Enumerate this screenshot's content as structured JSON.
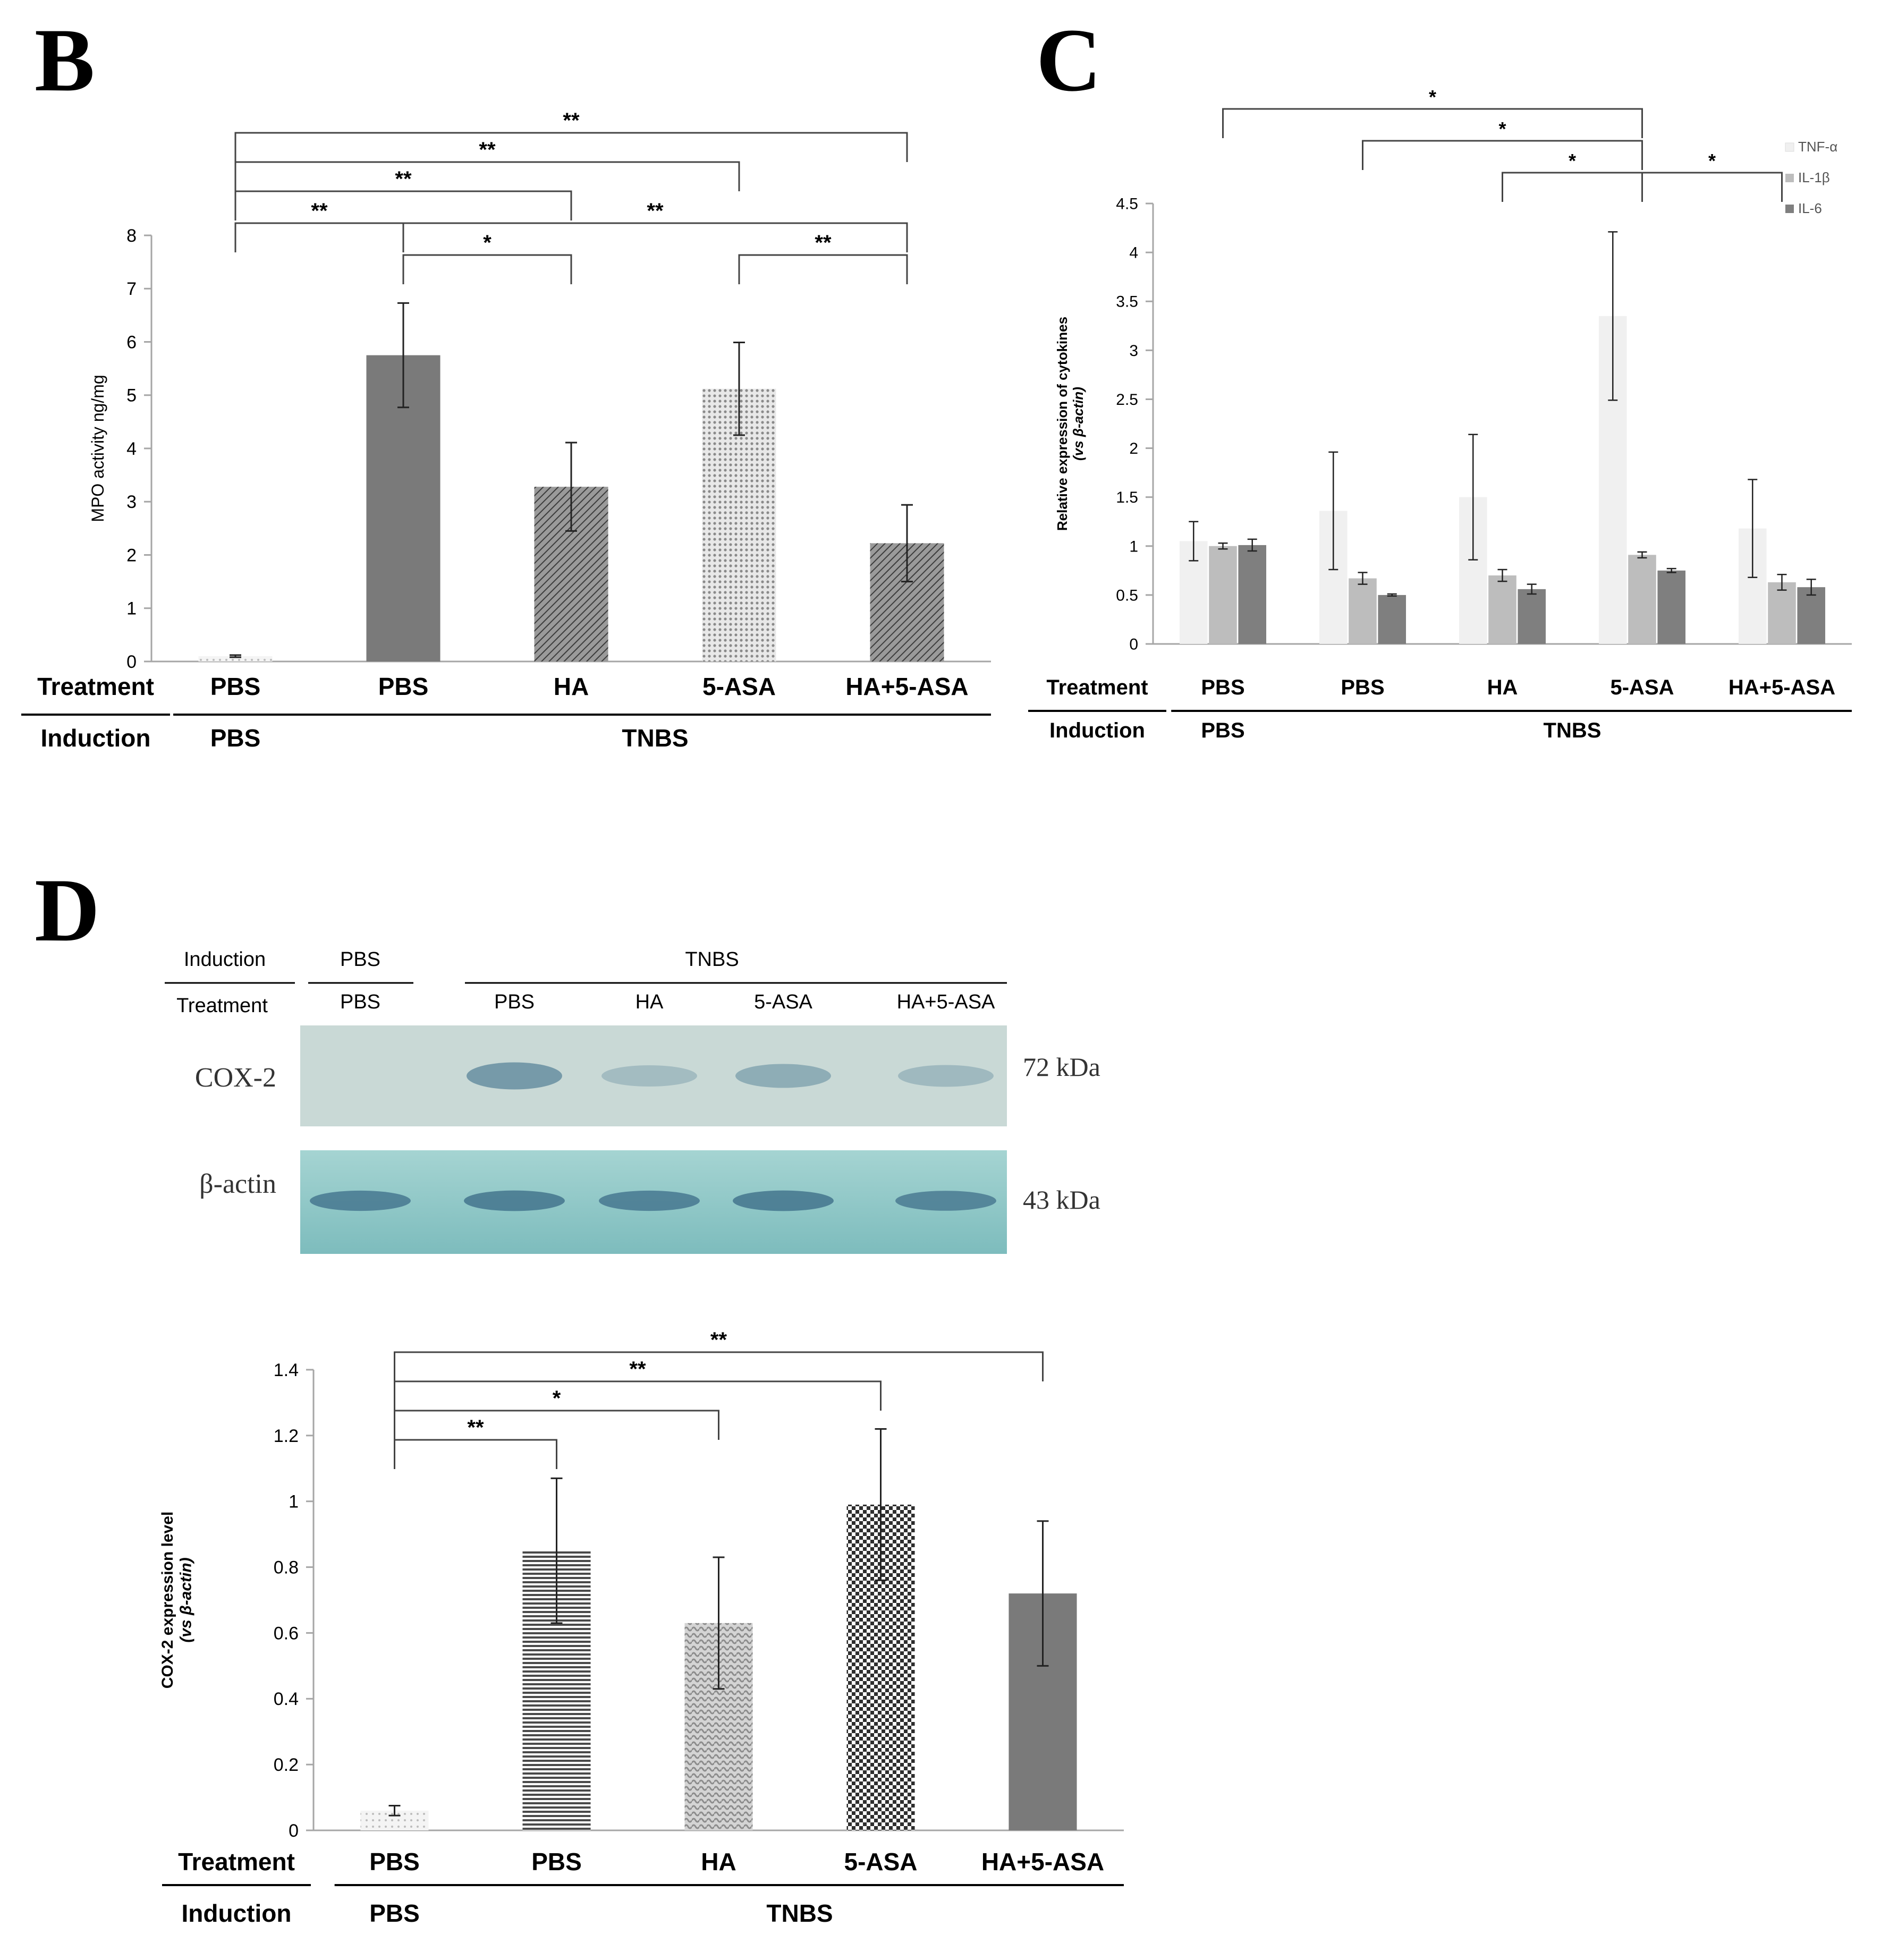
{
  "panels": {
    "B": "B",
    "C": "C",
    "D": "D"
  },
  "colors": {
    "axis": "#a6a6a6",
    "text": "#000000",
    "bar_dark": "#7a7a7a",
    "bar_light": "#cfcfcf",
    "tnf": "#f0f0f0",
    "il1b": "#bdbdbd",
    "il6": "#7f7f7f",
    "blot_cox": "#c9d9d6",
    "blot_actin": "#8ec8c8",
    "band": "#3f6f8a"
  },
  "chart_data": [
    {
      "id": "B",
      "type": "bar",
      "title": "",
      "ylabel": "MPO activity ng/mg",
      "ylim": [
        0,
        8
      ],
      "yticks": [
        "0",
        "1",
        "2",
        "3",
        "4",
        "5",
        "6",
        "7",
        "8"
      ],
      "categories": [
        "PBS",
        "PBS",
        "HA",
        "5-ASA",
        "HA+5-ASA"
      ],
      "values": [
        0.1,
        5.75,
        3.28,
        5.12,
        2.22
      ],
      "errors": [
        0.02,
        0.98,
        0.83,
        0.87,
        0.72
      ],
      "row_labels": {
        "treatment": "Treatment",
        "induction": "Induction"
      },
      "induction_groups": [
        "PBS",
        "TNBS"
      ],
      "significance": [
        {
          "from": 0,
          "to": 1,
          "label": "**",
          "level": 60
        },
        {
          "from": 0,
          "to": 2,
          "label": "**",
          "level": 120
        },
        {
          "from": 0,
          "to": 3,
          "label": "**",
          "level": 175
        },
        {
          "from": 0,
          "to": 4,
          "label": "**",
          "level": 230
        },
        {
          "from": 1,
          "to": 2,
          "label": "*",
          "level": 0
        },
        {
          "from": 1,
          "to": 4,
          "label": "**",
          "level": 60
        },
        {
          "from": 3,
          "to": 4,
          "label": "**",
          "level": 0
        }
      ]
    },
    {
      "id": "C",
      "type": "bar",
      "ylabel": "Relative expression of cytokines",
      "ylabel2": "(vs β-actin)",
      "ylim": [
        0,
        4.5
      ],
      "yticks": [
        "0",
        "0.5",
        "1",
        "1.5",
        "2",
        "2.5",
        "3",
        "3.5",
        "4",
        "4.5"
      ],
      "categories": [
        "PBS",
        "PBS",
        "HA",
        "5-ASA",
        "HA+5-ASA"
      ],
      "series": [
        {
          "name": "TNF-α",
          "values": [
            1.05,
            1.36,
            1.5,
            3.35,
            1.18
          ],
          "errors": [
            0.2,
            0.6,
            0.64,
            0.86,
            0.5
          ]
        },
        {
          "name": "IL-1β",
          "values": [
            1.0,
            0.67,
            0.7,
            0.91,
            0.63
          ],
          "errors": [
            0.03,
            0.06,
            0.06,
            0.03,
            0.08
          ]
        },
        {
          "name": "IL-6",
          "values": [
            1.01,
            0.5,
            0.56,
            0.75,
            0.58
          ],
          "errors": [
            0.06,
            0.01,
            0.05,
            0.02,
            0.08
          ]
        }
      ],
      "row_labels": {
        "treatment": "Treatment",
        "induction": "Induction"
      },
      "induction_groups": [
        "PBS",
        "TNBS"
      ],
      "significance": [
        {
          "from": 0,
          "to": 3,
          "label": "*",
          "level": 140
        },
        {
          "from": 1,
          "to": 3,
          "label": "*",
          "level": 80
        },
        {
          "from": 2,
          "to": 3,
          "label": "*",
          "level": 20
        },
        {
          "from": 3,
          "to": 4,
          "label": "*",
          "level": 20
        }
      ]
    },
    {
      "id": "D",
      "type": "bar",
      "ylabel": "COX-2 expression level",
      "ylabel2": "(vs β-actin)",
      "ylim": [
        0,
        1.4
      ],
      "yticks": [
        "0",
        "0.2",
        "0.4",
        "0.6",
        "0.8",
        "1",
        "1.2",
        "1.4"
      ],
      "categories": [
        "PBS",
        "PBS",
        "HA",
        "5-ASA",
        "HA+5-ASA"
      ],
      "values": [
        0.06,
        0.85,
        0.63,
        0.99,
        0.72
      ],
      "errors": [
        0.015,
        0.22,
        0.2,
        0.23,
        0.22
      ],
      "row_labels": {
        "treatment": "Treatment",
        "induction": "Induction"
      },
      "induction_groups": [
        "PBS",
        "TNBS"
      ],
      "significance": [
        {
          "from": 0,
          "to": 1,
          "label": "**",
          "level": 0
        },
        {
          "from": 0,
          "to": 2,
          "label": "*",
          "level": 55
        },
        {
          "from": 0,
          "to": 3,
          "label": "**",
          "level": 110
        },
        {
          "from": 0,
          "to": 4,
          "label": "**",
          "level": 165
        }
      ]
    }
  ],
  "western_blot": {
    "induction_label": "Induction",
    "treatment_label": "Treatment",
    "induction_groups": [
      "PBS",
      "TNBS"
    ],
    "lanes": [
      "PBS",
      "PBS",
      "HA",
      "5-ASA",
      "HA+5-ASA"
    ],
    "rows": [
      {
        "name": "COX-2",
        "size": "72 kDa",
        "intensity": [
          0.0,
          0.75,
          0.2,
          0.45,
          0.25
        ]
      },
      {
        "name": "β-actin",
        "size": "43 kDa",
        "intensity": [
          0.85,
          0.9,
          0.85,
          0.9,
          0.8
        ]
      }
    ]
  }
}
